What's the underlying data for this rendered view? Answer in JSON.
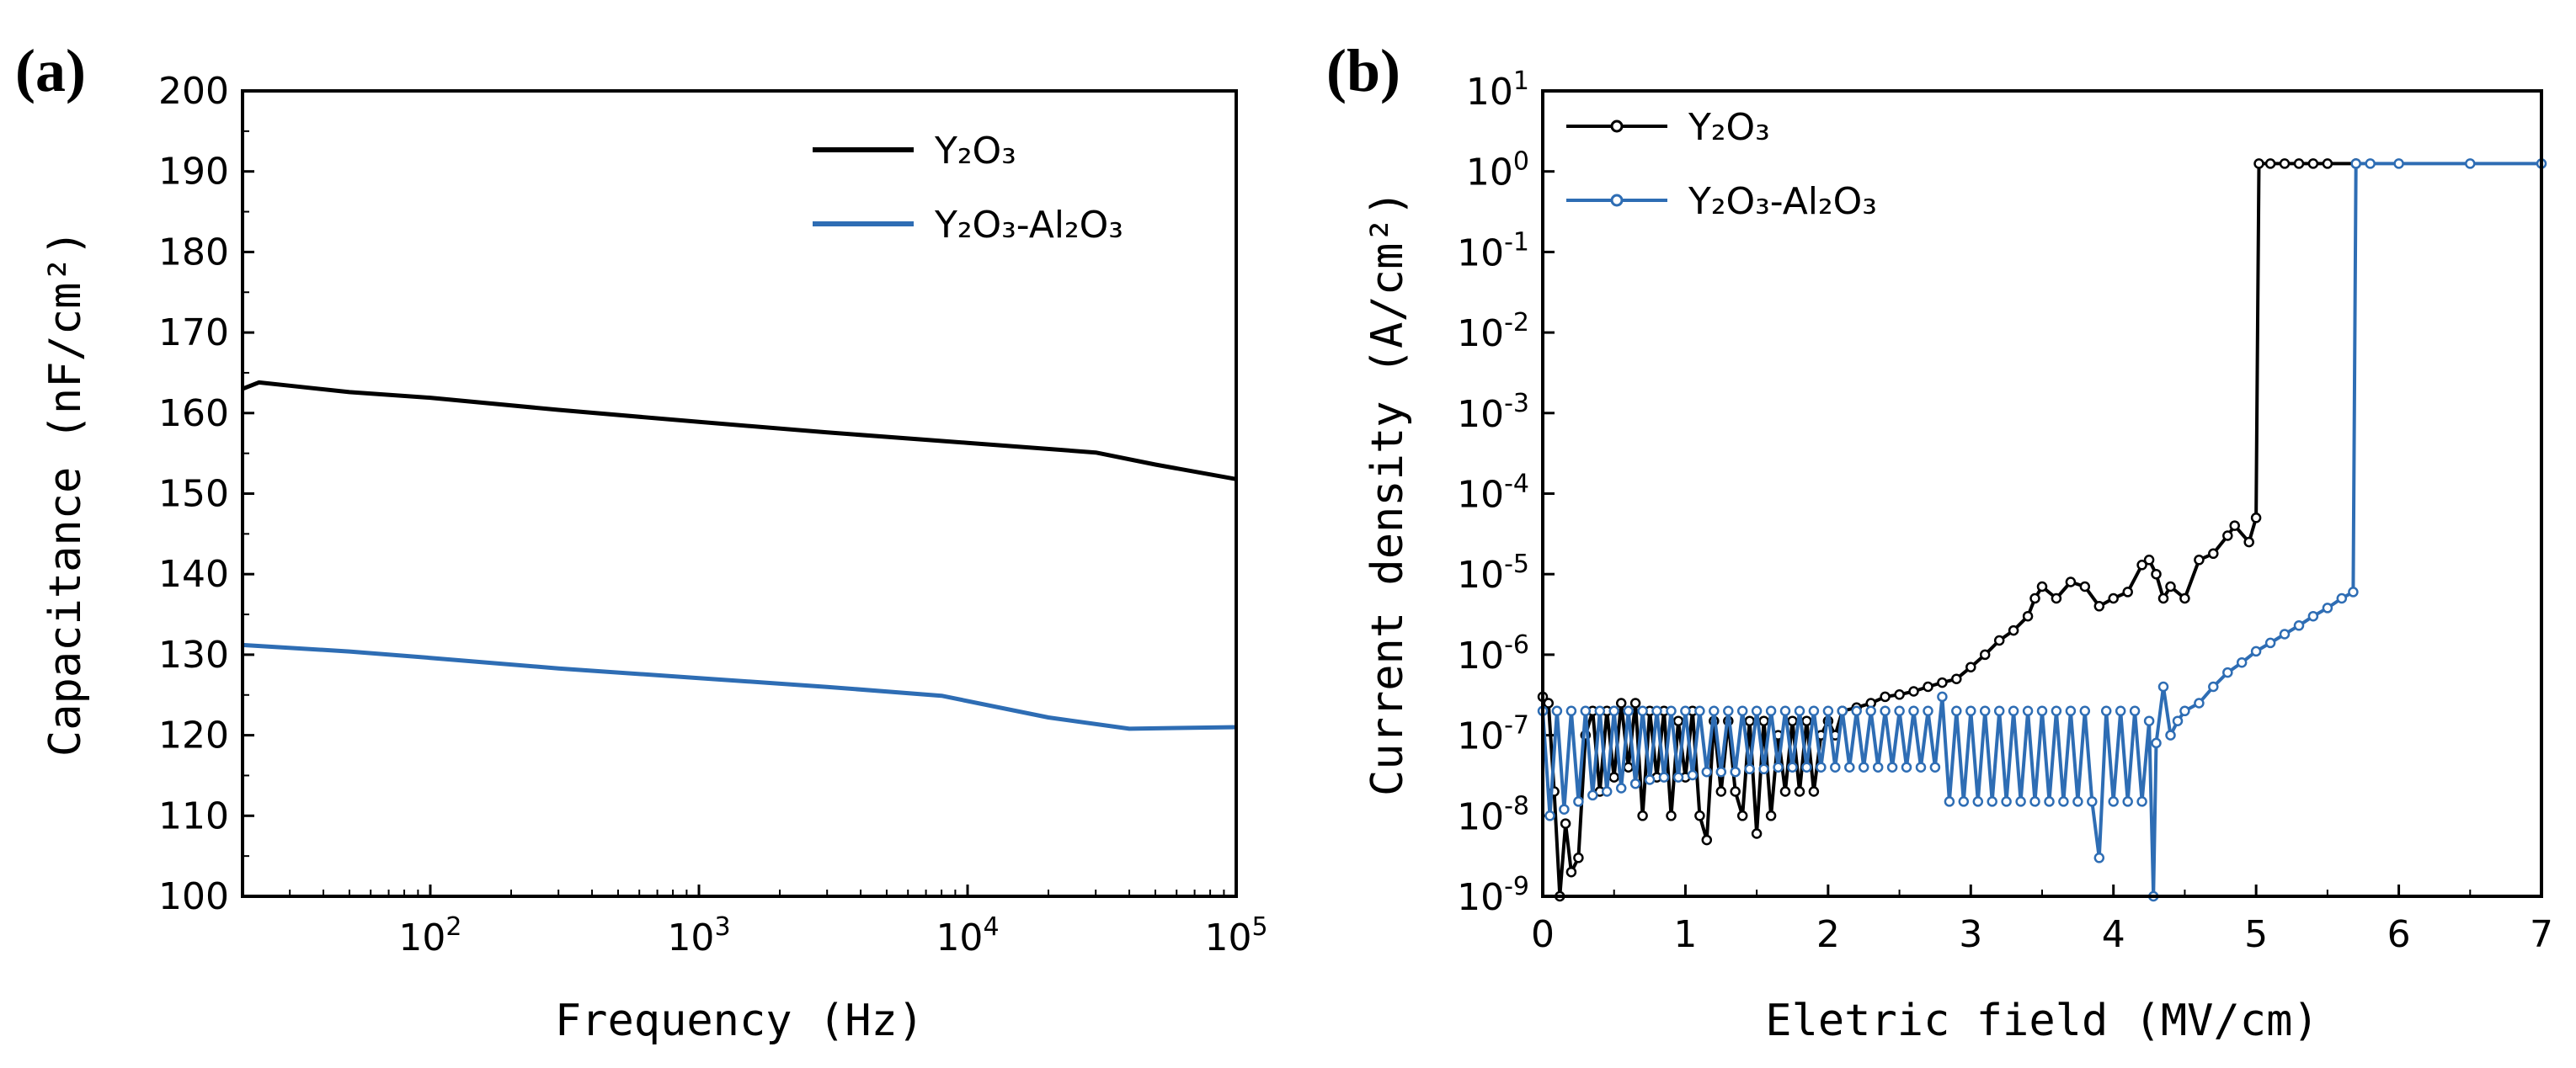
{
  "colors": {
    "y2o3": "#000000",
    "y2o3_al2o3": "#2e6db4"
  },
  "chart_data": [
    {
      "panel": "(a)",
      "type": "line",
      "xlabel": "Frequency (Hz)",
      "ylabel": "Capacitance (nF/cm²)",
      "xscale": "log",
      "xlim": [
        20,
        100000
      ],
      "ylim": [
        100,
        200
      ],
      "xticks": [
        {
          "value": 100,
          "base": "10",
          "exp": "2"
        },
        {
          "value": 1000,
          "base": "10",
          "exp": "3"
        },
        {
          "value": 10000,
          "base": "10",
          "exp": "4"
        },
        {
          "value": 100000,
          "base": "10",
          "exp": "5"
        }
      ],
      "yticks": [
        100,
        110,
        120,
        130,
        140,
        150,
        160,
        170,
        180,
        190,
        200
      ],
      "legend_position": "top-right",
      "series": [
        {
          "name": "Y₂O₃",
          "color_key": "y2o3",
          "x": [
            20,
            23,
            30,
            50,
            100,
            300,
            1000,
            3000,
            10000,
            30000,
            50000,
            100000
          ],
          "y": [
            163,
            163.8,
            163.4,
            162.6,
            161.9,
            160.4,
            158.9,
            157.6,
            156.3,
            155.1,
            153.6,
            151.8
          ]
        },
        {
          "name": "Y₂O₃-Al₂O₃",
          "color_key": "y2o3_al2o3",
          "x": [
            20,
            50,
            100,
            300,
            1000,
            3000,
            8000,
            20000,
            40000,
            60000,
            100000
          ],
          "y": [
            131.2,
            130.4,
            129.6,
            128.3,
            127.1,
            126,
            124.9,
            122.2,
            120.8,
            120.9,
            121
          ]
        }
      ]
    },
    {
      "panel": "(b)",
      "type": "line",
      "xlabel": "Eletric field (MV/cm)",
      "ylabel": "Current density (A/cm²)",
      "yscale": "log",
      "xlim": [
        0,
        7
      ],
      "ylim": [
        1e-09,
        10
      ],
      "xticks": [
        0,
        1,
        2,
        3,
        4,
        5,
        6,
        7
      ],
      "yticks": [
        {
          "value": 1e-09,
          "base": "10",
          "exp": "-9"
        },
        {
          "value": 1e-08,
          "base": "10",
          "exp": "-8"
        },
        {
          "value": 1e-07,
          "base": "10",
          "exp": "-7"
        },
        {
          "value": 1e-06,
          "base": "10",
          "exp": "-6"
        },
        {
          "value": 1e-05,
          "base": "10",
          "exp": "-5"
        },
        {
          "value": 0.0001,
          "base": "10",
          "exp": "-4"
        },
        {
          "value": 0.001,
          "base": "10",
          "exp": "-3"
        },
        {
          "value": 0.01,
          "base": "10",
          "exp": "-2"
        },
        {
          "value": 0.1,
          "base": "10",
          "exp": "-1"
        },
        {
          "value": 1,
          "base": "10",
          "exp": "0"
        },
        {
          "value": 10,
          "base": "10",
          "exp": "1"
        }
      ],
      "legend_position": "top-left",
      "series": [
        {
          "name": "Y₂O₃",
          "color_key": "y2o3",
          "x": [
            0,
            0.04,
            0.08,
            0.12,
            0.16,
            0.2,
            0.25,
            0.3,
            0.35,
            0.4,
            0.45,
            0.5,
            0.55,
            0.6,
            0.65,
            0.7,
            0.75,
            0.8,
            0.85,
            0.9,
            0.95,
            1.0,
            1.05,
            1.1,
            1.15,
            1.2,
            1.25,
            1.3,
            1.35,
            1.4,
            1.45,
            1.5,
            1.55,
            1.6,
            1.65,
            1.7,
            1.75,
            1.8,
            1.85,
            1.9,
            1.95,
            2.0,
            2.05,
            2.1,
            2.2,
            2.3,
            2.4,
            2.5,
            2.6,
            2.7,
            2.8,
            2.9,
            3.0,
            3.1,
            3.2,
            3.3,
            3.4,
            3.45,
            3.5,
            3.6,
            3.7,
            3.8,
            3.9,
            4.0,
            4.1,
            4.2,
            4.25,
            4.3,
            4.35,
            4.4,
            4.5,
            4.6,
            4.7,
            4.8,
            4.85,
            4.95,
            5.0,
            5.02,
            5.1,
            5.2,
            5.3,
            5.4,
            5.5,
            5.7
          ],
          "y": [
            3e-07,
            2.5e-07,
            2e-08,
            1e-09,
            8e-09,
            2e-09,
            3e-09,
            1e-07,
            2e-07,
            2e-08,
            2e-07,
            3e-08,
            2.5e-07,
            4e-08,
            2.5e-07,
            1e-08,
            2e-07,
            3e-08,
            2e-07,
            1e-08,
            1.5e-07,
            3e-08,
            2e-07,
            1e-08,
            5e-09,
            1.5e-07,
            2e-08,
            1.5e-07,
            2e-08,
            1e-08,
            1.5e-07,
            6e-09,
            1.5e-07,
            1e-08,
            1e-07,
            2e-08,
            1.5e-07,
            2e-08,
            1.5e-07,
            2e-08,
            1e-07,
            1.5e-07,
            1e-07,
            2e-07,
            2.2e-07,
            2.5e-07,
            3e-07,
            3.2e-07,
            3.5e-07,
            4e-07,
            4.5e-07,
            5e-07,
            7e-07,
            1e-06,
            1.5e-06,
            2e-06,
            3e-06,
            5e-06,
            7e-06,
            5e-06,
            8e-06,
            7e-06,
            4e-06,
            5e-06,
            6e-06,
            1.3e-05,
            1.5e-05,
            1e-05,
            5e-06,
            7e-06,
            5e-06,
            1.5e-05,
            1.8e-05,
            3e-05,
            4e-05,
            2.5e-05,
            5e-05,
            1.25,
            1.25,
            1.25,
            1.25,
            1.25,
            1.25,
            1.25
          ]
        },
        {
          "name": "Y₂O₃-Al₂O₃",
          "color_key": "y2o3_al2o3",
          "x": [
            0,
            0.05,
            0.1,
            0.15,
            0.2,
            0.25,
            0.3,
            0.35,
            0.4,
            0.45,
            0.5,
            0.55,
            0.6,
            0.65,
            0.7,
            0.75,
            0.8,
            0.85,
            0.9,
            0.95,
            1.0,
            1.05,
            1.1,
            1.15,
            1.2,
            1.25,
            1.3,
            1.35,
            1.4,
            1.45,
            1.5,
            1.55,
            1.6,
            1.65,
            1.7,
            1.75,
            1.8,
            1.85,
            1.9,
            1.95,
            2.0,
            2.05,
            2.1,
            2.15,
            2.2,
            2.25,
            2.3,
            2.35,
            2.4,
            2.45,
            2.5,
            2.55,
            2.6,
            2.65,
            2.7,
            2.75,
            2.8,
            2.85,
            2.9,
            2.95,
            3.0,
            3.05,
            3.1,
            3.15,
            3.2,
            3.25,
            3.3,
            3.35,
            3.4,
            3.45,
            3.5,
            3.55,
            3.6,
            3.65,
            3.7,
            3.75,
            3.8,
            3.85,
            3.9,
            3.95,
            4.0,
            4.05,
            4.1,
            4.15,
            4.2,
            4.25,
            4.28,
            4.3,
            4.35,
            4.4,
            4.45,
            4.5,
            4.6,
            4.7,
            4.8,
            4.9,
            5.0,
            5.1,
            5.2,
            5.3,
            5.4,
            5.5,
            5.6,
            5.68,
            5.7,
            5.8,
            6.0,
            6.5,
            7.0
          ],
          "y": [
            2e-07,
            1e-08,
            2e-07,
            1.2e-08,
            2e-07,
            1.5e-08,
            2e-07,
            1.8e-08,
            2e-07,
            2e-08,
            2e-07,
            2.2e-08,
            2e-07,
            2.5e-08,
            2e-07,
            2.8e-08,
            2e-07,
            3e-08,
            2e-07,
            3e-08,
            2e-07,
            3.2e-08,
            2e-07,
            3.5e-08,
            2e-07,
            3.5e-08,
            2e-07,
            3.5e-08,
            2e-07,
            3.8e-08,
            2e-07,
            3.8e-08,
            2e-07,
            4e-08,
            2e-07,
            4e-08,
            2e-07,
            4e-08,
            2e-07,
            4e-08,
            2e-07,
            4e-08,
            2e-07,
            4e-08,
            2e-07,
            4e-08,
            2e-07,
            4e-08,
            2e-07,
            4e-08,
            2e-07,
            4e-08,
            2e-07,
            4e-08,
            2e-07,
            4e-08,
            3e-07,
            1.5e-08,
            2e-07,
            1.5e-08,
            2e-07,
            1.5e-08,
            2e-07,
            1.5e-08,
            2e-07,
            1.5e-08,
            2e-07,
            1.5e-08,
            2e-07,
            1.5e-08,
            2e-07,
            1.5e-08,
            2e-07,
            1.5e-08,
            2e-07,
            1.5e-08,
            2e-07,
            1.5e-08,
            3e-09,
            2e-07,
            1.5e-08,
            2e-07,
            1.5e-08,
            2e-07,
            1.5e-08,
            1.5e-07,
            1e-09,
            8e-08,
            4e-07,
            1e-07,
            1.5e-07,
            2e-07,
            2.5e-07,
            4e-07,
            6e-07,
            8e-07,
            1.1e-06,
            1.4e-06,
            1.8e-06,
            2.3e-06,
            3e-06,
            3.8e-06,
            5e-06,
            6e-06,
            1.25,
            1.25,
            1.25,
            1.25,
            1.25
          ]
        }
      ]
    }
  ]
}
